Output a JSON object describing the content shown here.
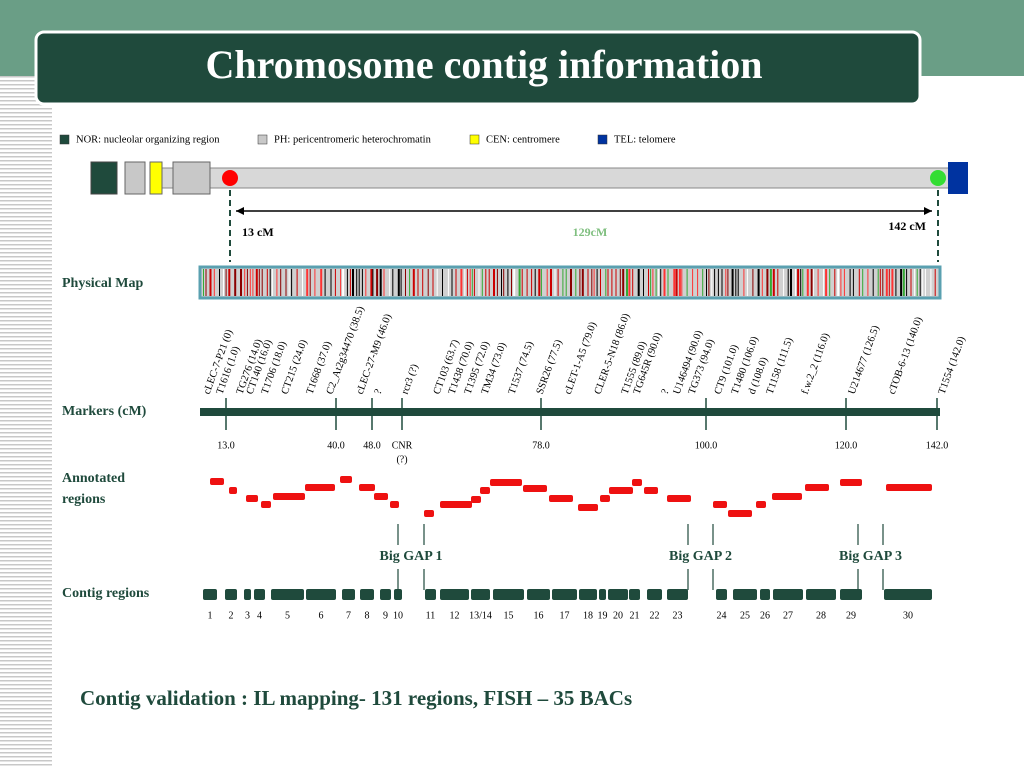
{
  "title": "Chromosome contig information",
  "legend": [
    {
      "label": "NOR: nucleolar organizing region",
      "color": "#1f4a3c"
    },
    {
      "label": "PH: pericentromeric heterochromatin",
      "color": "#c8c8c8"
    },
    {
      "label": "CEN: centromere",
      "color": "#ffff00"
    },
    {
      "label": "TEL: telomere",
      "color": "#0033a0"
    }
  ],
  "chromosome": {
    "start_label": "13 cM",
    "span_label": "129cM",
    "end_label": "142 cM"
  },
  "rows": {
    "physical_map": "Physical Map",
    "markers": "Markers (cM)",
    "annotated": [
      "Annotated",
      "regions"
    ],
    "contigs": "Contig regions"
  },
  "markers": [
    "cLEC-7-P21 (0)",
    "T1616 (1.0)",
    "TG276 (14.0)",
    "CT140 (16.0)",
    "T1706 (18.0)",
    "CT215 (24.0)",
    "T1668 (37.0)",
    "C2_At2g34470 (38.5)",
    "cLEC-27-M9 (46.0)",
    "?",
    "rcr3 (?)",
    "CT103 (63.7)",
    "T1438 (70.0)",
    "T1395 (72.0)",
    "TM34 (73.0)",
    "T1537 (74.5)",
    "SSR26 (77.5)",
    "cLET-1-A5 (79.0)",
    "CLER-5-N18 (86.0)",
    "T1555 (89.0)",
    "TG645R (90.0)",
    "?",
    "U146494 (90.0)",
    "TG373 (94.0)",
    "CT9 (101.0)",
    "T1480 (106.0)",
    "d (108.0)",
    "T1158 (111.5)",
    "f.w.2_2 (116.0)",
    "U214677 (126.5)",
    "cTOB-6-13 (140.0)",
    "T1554 (142.0)"
  ],
  "marker_ticks": [
    "13.0",
    "40.0",
    "48.0",
    "CNR",
    "78.0",
    "100.0",
    "120.0",
    "142.0"
  ],
  "cnr_note": "(?)",
  "gaps": [
    "Big GAP 1",
    "Big GAP 2",
    "Big GAP 3"
  ],
  "contigs": [
    "1",
    "2",
    "3",
    "4",
    "5",
    "6",
    "7",
    "8",
    "9",
    "10",
    "11",
    "12",
    "13/14",
    "15",
    "16",
    "17",
    "18",
    "19",
    "20",
    "21",
    "22",
    "23",
    "24",
    "25",
    "26",
    "27",
    "28",
    "29",
    "30"
  ],
  "footer": "Contig validation : IL mapping- 131 regions,  FISH – 35 BACs"
}
